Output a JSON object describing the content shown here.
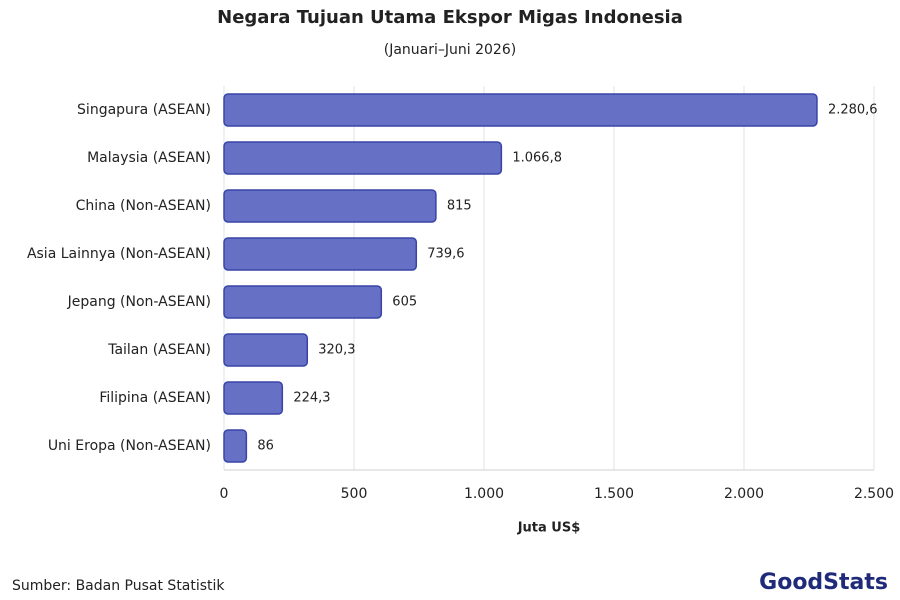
{
  "chart_data": {
    "type": "bar",
    "orientation": "horizontal",
    "title": "Negara Tujuan Utama Ekspor Migas Indonesia",
    "subtitle": "(Januari–Juni 2026)",
    "x_label": "Juta US$",
    "source": "Sumber: Badan Pusat Statistik",
    "brand": "GoodStats",
    "categories": [
      "Singapura (ASEAN)",
      "Malaysia (ASEAN)",
      "China (Non-ASEAN)",
      "Asia Lainnya (Non-ASEAN)",
      "Jepang (Non-ASEAN)",
      "Tailan (ASEAN)",
      "Filipina (ASEAN)",
      "Uni Eropa (Non-ASEAN)"
    ],
    "values": [
      2280.6,
      1066.8,
      815,
      739.6,
      605,
      320.3,
      224.3,
      86
    ],
    "value_labels": [
      "2.280,6",
      "1.066,8",
      "815",
      "739,6",
      "605",
      "320,3",
      "224,3",
      "86"
    ],
    "color": "#6670c4",
    "edge_color": "#3a44a8",
    "xlim": [
      0,
      2500
    ],
    "xticks": [
      0,
      500,
      {
        "value": 1000,
        "label": "1.000"
      },
      {
        "value": 1500,
        "label": "1.500"
      },
      {
        "value": 2000,
        "label": "2.000"
      },
      {
        "value": 2500,
        "label": "2.500"
      }
    ],
    "grid": true
  }
}
